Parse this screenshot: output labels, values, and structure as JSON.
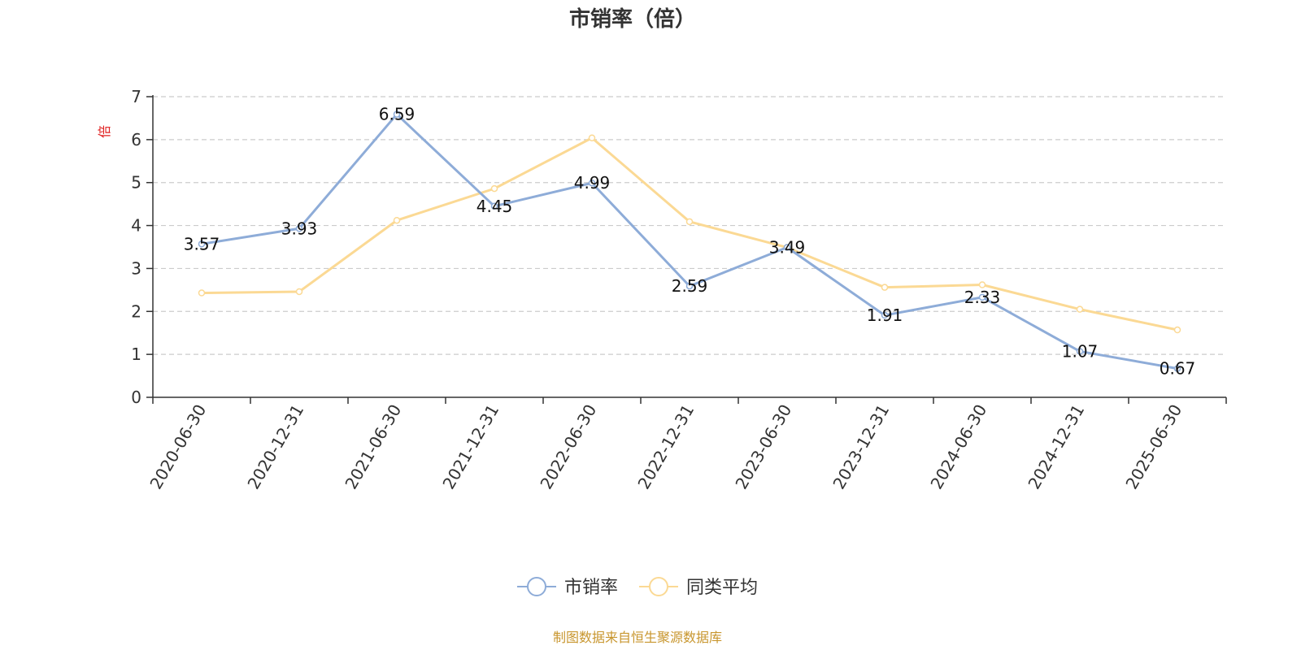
{
  "chart_data": {
    "type": "line",
    "title": "市销率（倍）",
    "ylabel": "倍",
    "xlabel": "",
    "categories": [
      "2020-06-30",
      "2020-12-31",
      "2021-06-30",
      "2021-12-31",
      "2022-06-30",
      "2022-12-31",
      "2023-06-30",
      "2023-12-31",
      "2024-06-30",
      "2024-12-31",
      "2025-06-30"
    ],
    "yticks": [
      "0",
      "1",
      "2",
      "3",
      "4",
      "5",
      "6",
      "7"
    ],
    "ylim": [
      0,
      7
    ],
    "grid": true,
    "legend_position": "bottom",
    "series": [
      {
        "name": "市销率",
        "color": "#8eacd8",
        "values": [
          3.57,
          3.93,
          6.59,
          4.45,
          4.99,
          2.59,
          3.49,
          1.91,
          2.33,
          1.07,
          0.67
        ],
        "labels": [
          "3.57",
          "3.93",
          "6.59",
          "4.45",
          "4.99",
          "2.59",
          "3.49",
          "1.91",
          "2.33",
          "1.07",
          "0.67"
        ]
      },
      {
        "name": "同类平均",
        "color": "#fbd994",
        "values": [
          2.43,
          2.46,
          4.12,
          4.86,
          6.04,
          4.09,
          3.49,
          2.56,
          2.62,
          2.05,
          1.57
        ]
      }
    ],
    "source": "制图数据来自恒生聚源数据库"
  }
}
